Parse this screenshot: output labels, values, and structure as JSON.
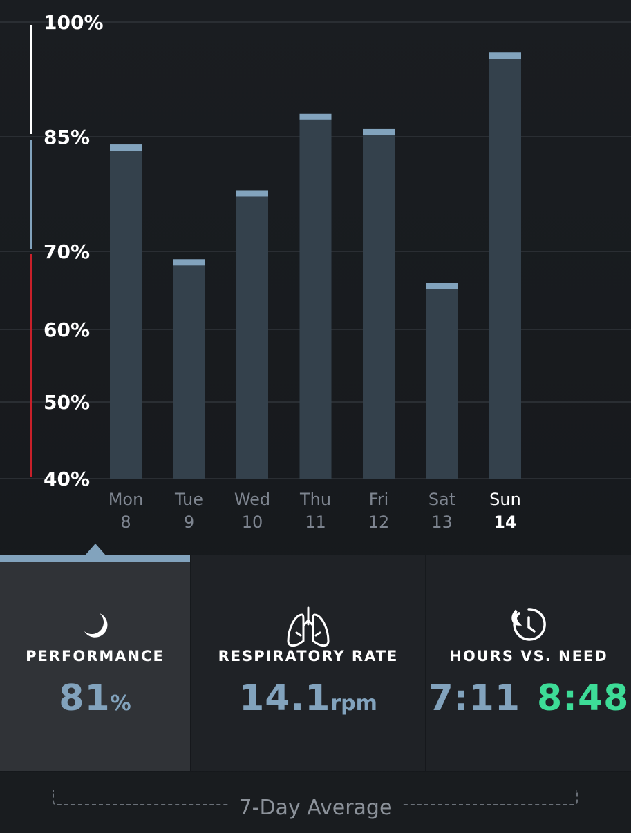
{
  "chart_data": {
    "type": "bar",
    "y_ticks": [
      "100%",
      "85%",
      "70%",
      "60%",
      "50%",
      "40%"
    ],
    "tick_values": [
      100,
      85,
      70,
      60,
      50,
      40
    ],
    "categories": [
      {
        "day": "Mon",
        "date": "8"
      },
      {
        "day": "Tue",
        "date": "9"
      },
      {
        "day": "Wed",
        "date": "10"
      },
      {
        "day": "Thu",
        "date": "11"
      },
      {
        "day": "Fri",
        "date": "12"
      },
      {
        "day": "Sat",
        "date": "13"
      },
      {
        "day": "Sun",
        "date": "14"
      }
    ],
    "values": [
      84,
      69,
      78,
      88,
      86,
      66,
      96
    ],
    "ylim": [
      40,
      100
    ],
    "selected_index": 6,
    "zone_colors": {
      "high": "#ffffff",
      "mid": "#82a3bd",
      "low": "#c8202a"
    },
    "bar_color": "#34414c",
    "bar_cap_color": "#82a3bd"
  },
  "tiles": {
    "performance": {
      "title": "PERFORMANCE",
      "value": "81",
      "unit": "%",
      "icon": "moon-icon"
    },
    "respiratory": {
      "title": "RESPIRATORY RATE",
      "value": "14.1",
      "unit": "rpm",
      "icon": "lungs-icon"
    },
    "hours": {
      "title": "HOURS VS. NEED",
      "hours": "7:11",
      "need": "8:48",
      "icon": "clock-icon"
    }
  },
  "footer": {
    "label": "7-Day Average"
  },
  "colors": {
    "accent": "#82a3bd",
    "need": "#3ddc97",
    "background": "#1a1d21"
  }
}
